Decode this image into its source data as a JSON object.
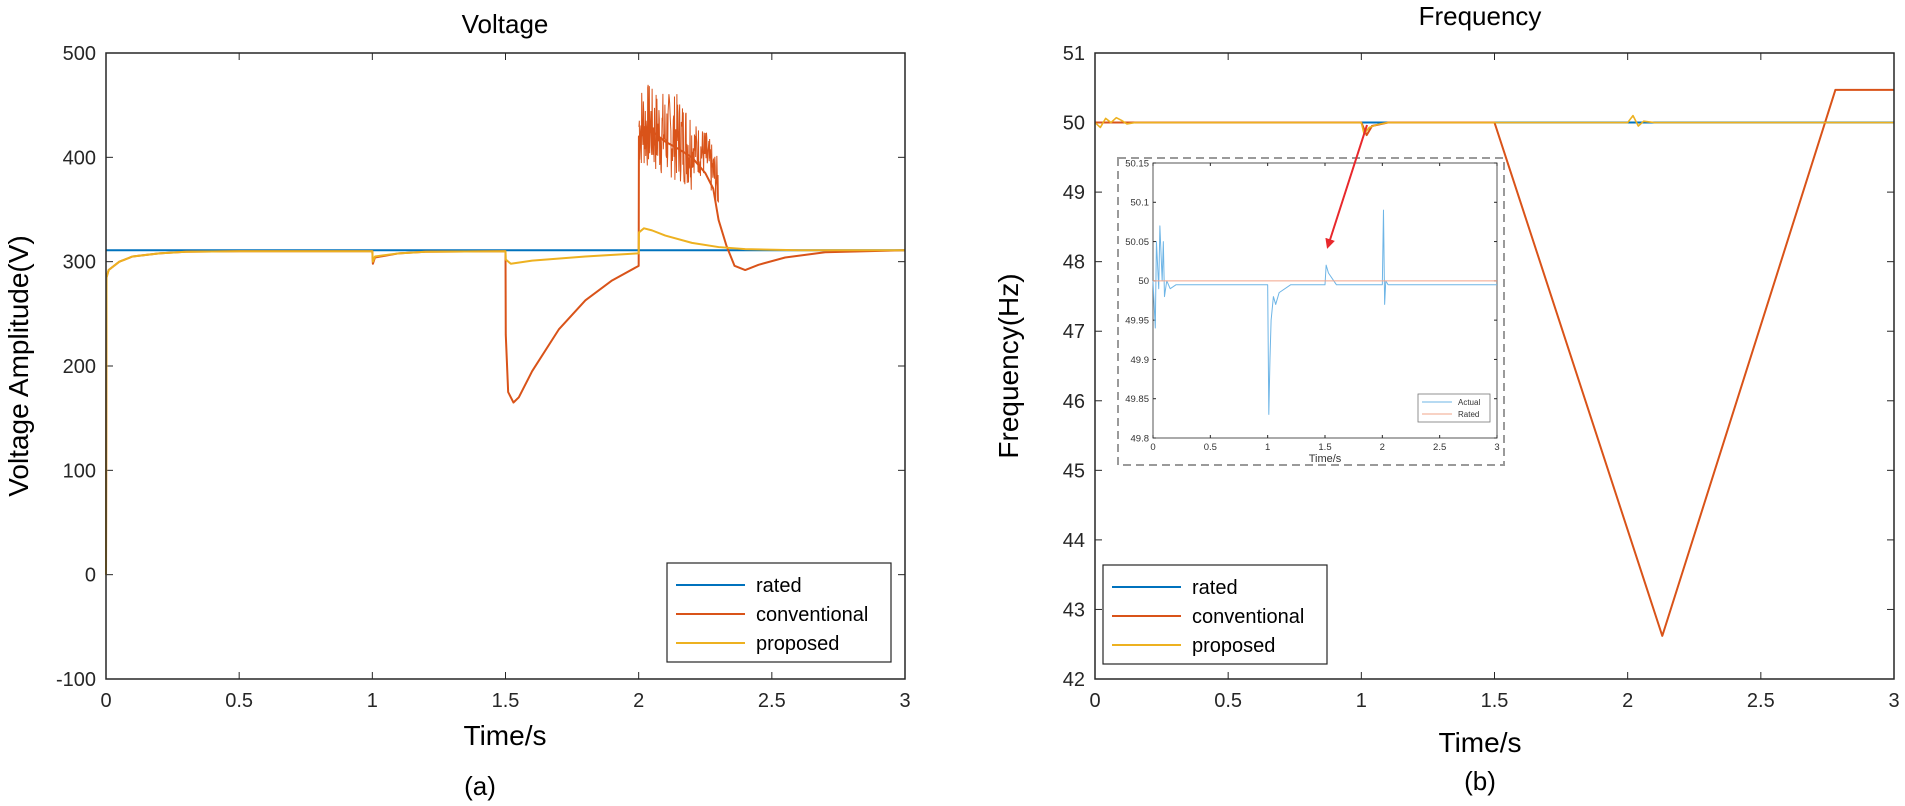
{
  "colors": {
    "rated": "#0072BD",
    "conventional": "#D95319",
    "proposed": "#EDB120",
    "inset_actual": "#6EB5E6",
    "inset_rated": "#F2A58A",
    "arrow": "#E8282C"
  },
  "chart_data": [
    {
      "type": "line",
      "panel_label": "(a)",
      "title": "Voltage",
      "xlabel": "Time/s",
      "ylabel": "Voltage Amplitude(V)",
      "xlim": [
        0,
        3
      ],
      "ylim": [
        -100,
        500
      ],
      "xticks": [
        "0",
        "0.5",
        "1",
        "1.5",
        "2",
        "2.5",
        "3"
      ],
      "yticks": [
        "-100",
        "0",
        "100",
        "200",
        "300",
        "400",
        "500"
      ],
      "legend": [
        "rated",
        "conventional",
        "proposed"
      ],
      "series": [
        {
          "name": "rated",
          "x": [
            0,
            3
          ],
          "y": [
            311,
            311
          ]
        },
        {
          "name": "conventional",
          "x": [
            0,
            0.002,
            0.01,
            0.05,
            0.1,
            0.2,
            0.3,
            0.5,
            1.0,
            1.002,
            1.01,
            1.1,
            1.2,
            1.5,
            1.501,
            1.51,
            1.53,
            1.55,
            1.6,
            1.7,
            1.8,
            1.9,
            2.0,
            2.001,
            2.05,
            2.1,
            2.15,
            2.2,
            2.25,
            2.28,
            2.3,
            2.33,
            2.36,
            2.4,
            2.45,
            2.55,
            2.7,
            3.0
          ],
          "y": [
            0,
            285,
            292,
            300,
            305,
            308,
            309.5,
            310,
            310,
            298,
            304,
            308,
            309.5,
            310,
            230,
            175,
            165,
            170,
            195,
            235,
            263,
            282,
            296,
            420,
            425,
            415,
            408,
            400,
            385,
            370,
            340,
            315,
            296,
            292,
            297,
            304,
            309,
            311
          ]
        },
        {
          "name": "proposed",
          "x": [
            0,
            0.002,
            0.01,
            0.05,
            0.1,
            0.2,
            0.3,
            0.5,
            1.0,
            1.002,
            1.01,
            1.1,
            1.2,
            1.5,
            1.501,
            1.52,
            1.6,
            1.8,
            2.0,
            2.001,
            2.02,
            2.05,
            2.1,
            2.2,
            2.3,
            2.4,
            2.6,
            3.0
          ],
          "y": [
            0,
            285,
            292,
            300,
            305,
            308,
            309.5,
            310,
            310,
            300,
            305,
            308,
            309.5,
            310,
            302,
            298,
            301,
            305,
            308,
            328,
            332,
            330,
            325,
            318,
            314,
            312,
            311,
            311
          ]
        }
      ]
    },
    {
      "type": "line",
      "panel_label": "(b)",
      "title": "Frequency",
      "xlabel": "Time/s",
      "ylabel": "Frequency(Hz)",
      "xlim": [
        0,
        3
      ],
      "ylim": [
        42,
        51
      ],
      "xticks": [
        "0",
        "0.5",
        "1",
        "1.5",
        "2",
        "2.5",
        "3"
      ],
      "yticks": [
        "42",
        "43",
        "44",
        "45",
        "46",
        "47",
        "48",
        "49",
        "50",
        "51"
      ],
      "legend": [
        "rated",
        "conventional",
        "proposed"
      ],
      "series": [
        {
          "name": "rated",
          "x": [
            0,
            3
          ],
          "y": [
            50,
            50
          ]
        },
        {
          "name": "conventional",
          "x": [
            0,
            1.0,
            1.02,
            1.04,
            1.1,
            1.5,
            2.13,
            2.78,
            3.0
          ],
          "y": [
            50,
            50,
            49.82,
            49.95,
            50,
            50,
            42.62,
            50.47,
            50.47
          ]
        },
        {
          "name": "proposed",
          "x": [
            0,
            0.02,
            0.04,
            0.06,
            0.08,
            0.1,
            0.12,
            0.15,
            0.2,
            1.0,
            1.01,
            1.03,
            1.06,
            1.1,
            1.15,
            2.0,
            2.02,
            2.04,
            2.06,
            2.1,
            3.0
          ],
          "y": [
            50,
            49.93,
            50.06,
            50.0,
            50.07,
            50.03,
            49.98,
            50.0,
            50,
            50,
            49.84,
            49.93,
            49.97,
            50,
            50,
            50,
            50.1,
            49.95,
            50.02,
            50,
            50
          ]
        }
      ],
      "inset": {
        "xlabel": "Time/s",
        "xlim": [
          0,
          3
        ],
        "ylim": [
          49.8,
          50.15
        ],
        "xticks": [
          "0",
          "0.5",
          "1",
          "1.5",
          "2",
          "2.5",
          "3"
        ],
        "yticks": [
          "49.8",
          "49.85",
          "49.9",
          "49.95",
          "50",
          "50.05",
          "50.1",
          "50.15"
        ],
        "legend": [
          "Actual",
          "Rated"
        ],
        "series": [
          {
            "name": "Actual",
            "x": [
              0,
              0.02,
              0.03,
              0.05,
              0.06,
              0.08,
              0.09,
              0.1,
              0.12,
              0.15,
              0.2,
              1.0,
              1.01,
              1.02,
              1.03,
              1.05,
              1.07,
              1.1,
              1.2,
              1.5,
              1.51,
              1.53,
              1.6,
              2.0,
              2.01,
              2.02,
              2.03,
              2.05,
              2.2,
              3.0
            ],
            "y": [
              50,
              49.94,
              50.05,
              49.99,
              50.07,
              50.0,
              50.05,
              49.98,
              50.0,
              49.99,
              49.995,
              49.995,
              49.83,
              49.9,
              49.95,
              49.98,
              49.97,
              49.985,
              49.995,
              49.995,
              50.02,
              50.01,
              49.995,
              49.995,
              50.09,
              49.97,
              50.0,
              49.995,
              49.995,
              49.995
            ]
          },
          {
            "name": "Rated",
            "x": [
              0,
              3
            ],
            "y": [
              50,
              50
            ]
          }
        ]
      }
    }
  ]
}
